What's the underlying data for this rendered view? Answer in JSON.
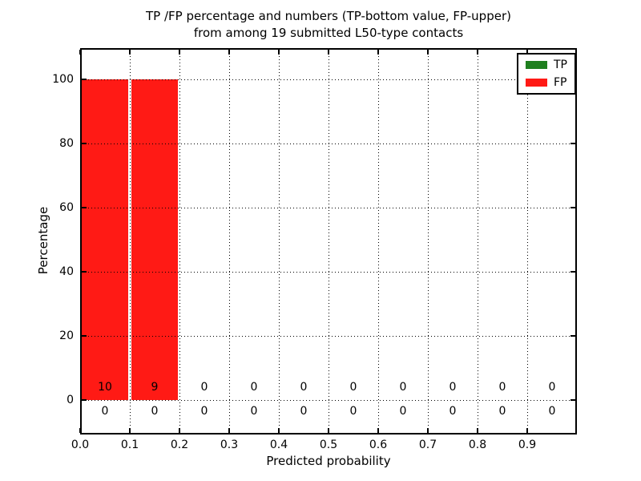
{
  "chart_data": {
    "type": "bar",
    "stacked": true,
    "title_line1": "TP /FP percentage and numbers (TP-bottom value, FP-upper)",
    "title_line2": "from among 19 submitted L50-type contacts",
    "xlabel": "Predicted probability",
    "ylabel": "Percentage",
    "xlim": [
      0.0,
      1.0
    ],
    "ylim": [
      -10,
      110
    ],
    "grid": true,
    "legend_position": "upper right",
    "total_submitted_contacts": 19,
    "bin_width": 0.1,
    "bin_starts": [
      0.0,
      0.1,
      0.2,
      0.3,
      0.4,
      0.5,
      0.6,
      0.7,
      0.8,
      0.9
    ],
    "bin_centers": [
      0.05,
      0.15,
      0.25,
      0.35,
      0.45,
      0.55,
      0.65,
      0.75,
      0.85,
      0.95
    ],
    "xticks": [
      0.0,
      0.1,
      0.2,
      0.3,
      0.4,
      0.5,
      0.6,
      0.7,
      0.8,
      0.9
    ],
    "xtick_labels": [
      "0.0",
      "0.1",
      "0.2",
      "0.3",
      "0.4",
      "0.5",
      "0.6",
      "0.7",
      "0.8",
      "0.9"
    ],
    "yticks": [
      0,
      20,
      40,
      60,
      80,
      100
    ],
    "ytick_labels": [
      "0",
      "20",
      "40",
      "60",
      "80",
      "100"
    ],
    "series": [
      {
        "name": "TP",
        "color": "#1f7f1f",
        "percent_values": [
          0,
          0,
          0,
          0,
          0,
          0,
          0,
          0,
          0,
          0
        ],
        "counts": [
          0,
          0,
          0,
          0,
          0,
          0,
          0,
          0,
          0,
          0
        ],
        "count_row": "bottom"
      },
      {
        "name": "FP",
        "color": "#ff1a15",
        "percent_values": [
          100,
          100,
          0,
          0,
          0,
          0,
          0,
          0,
          0,
          0
        ],
        "counts": [
          10,
          9,
          0,
          0,
          0,
          0,
          0,
          0,
          0,
          0
        ],
        "count_row": "upper"
      }
    ]
  }
}
